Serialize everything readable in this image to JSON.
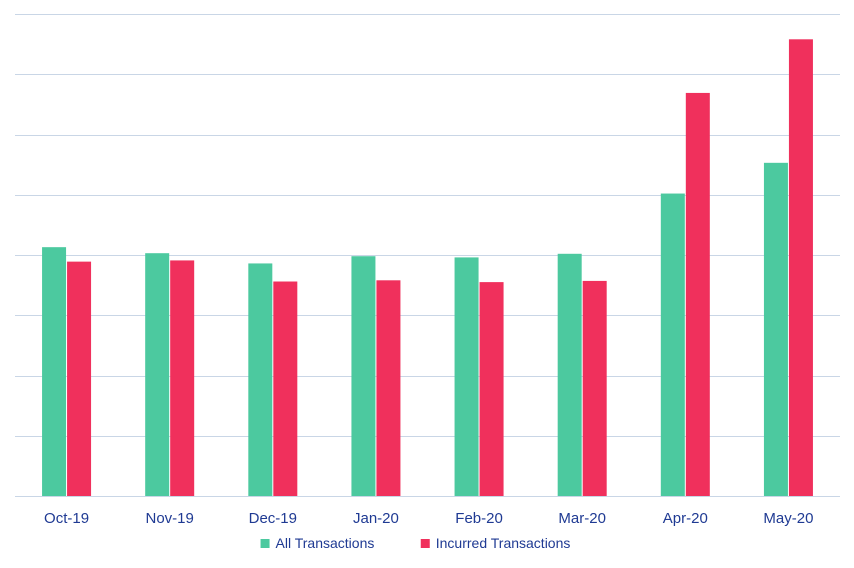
{
  "chart_data": {
    "type": "bar",
    "title": "",
    "xlabel": "",
    "ylabel": "",
    "categories": [
      "Oct-19",
      "Nov-19",
      "Dec-19",
      "Jan-20",
      "Feb-20",
      "Mar-20",
      "Apr-20",
      "May-20"
    ],
    "series": [
      {
        "name": "All Transactions",
        "color": "#4cc99f",
        "values": [
          4.13,
          4.03,
          3.86,
          3.98,
          3.96,
          4.02,
          5.02,
          5.53
        ]
      },
      {
        "name": "Incurred Transactions",
        "color": "#f0305c",
        "values": [
          3.89,
          3.91,
          3.56,
          3.58,
          3.55,
          3.57,
          6.69,
          7.58
        ]
      }
    ],
    "ylim": [
      0,
      8
    ],
    "y_ticks": [
      0,
      1,
      2,
      3,
      4,
      5,
      6,
      7,
      8
    ],
    "y_tick_labels_visible": false,
    "grid": true,
    "gridline_color": "#c9d6e6",
    "tick_label_color": "#1f3a93",
    "legend_position": "bottom"
  }
}
